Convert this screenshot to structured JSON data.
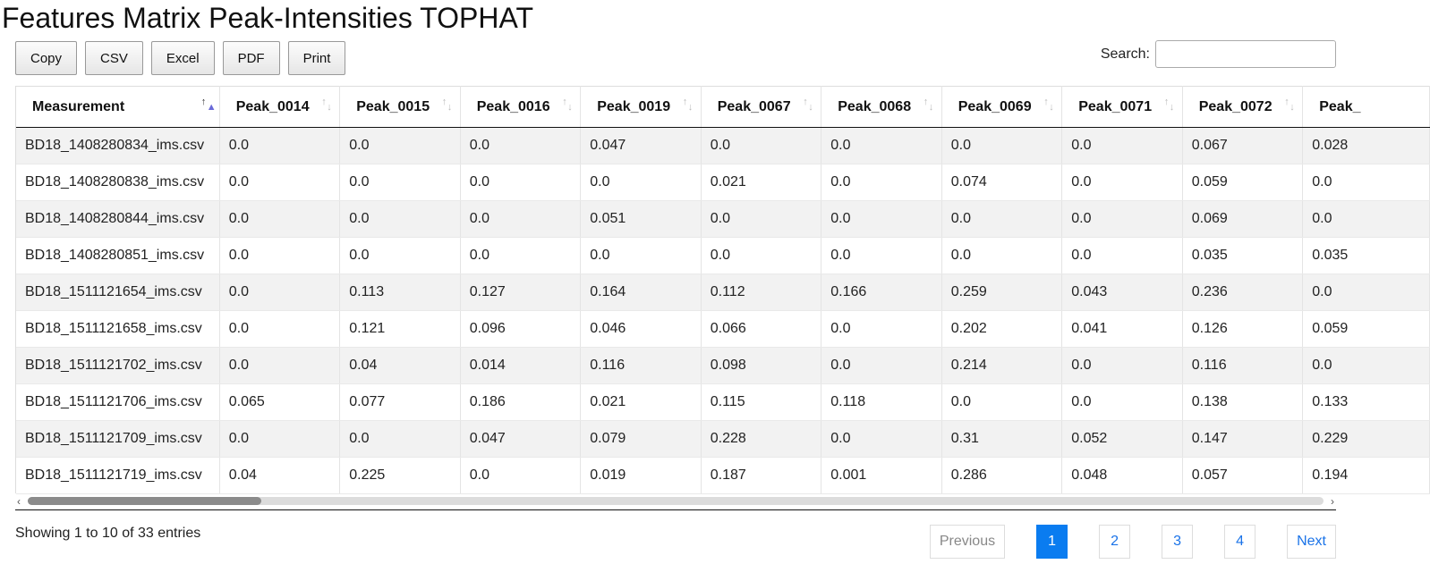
{
  "page": {
    "title": "Features Matrix Peak-Intensities TOPHAT"
  },
  "toolbar": {
    "buttons": [
      "Copy",
      "CSV",
      "Excel",
      "PDF",
      "Print"
    ]
  },
  "search": {
    "label": "Search:",
    "value": "",
    "placeholder": ""
  },
  "table": {
    "columns": [
      "Measurement",
      "Peak_0014",
      "Peak_0015",
      "Peak_0016",
      "Peak_0019",
      "Peak_0067",
      "Peak_0068",
      "Peak_0069",
      "Peak_0071",
      "Peak_0072",
      "Peak_"
    ],
    "sorted_column": "Measurement",
    "sort_direction": "ascending",
    "rows": [
      [
        "BD18_1408280834_ims.csv",
        "0.0",
        "0.0",
        "0.0",
        "0.047",
        "0.0",
        "0.0",
        "0.0",
        "0.0",
        "0.067",
        "0.028"
      ],
      [
        "BD18_1408280838_ims.csv",
        "0.0",
        "0.0",
        "0.0",
        "0.0",
        "0.021",
        "0.0",
        "0.074",
        "0.0",
        "0.059",
        "0.0"
      ],
      [
        "BD18_1408280844_ims.csv",
        "0.0",
        "0.0",
        "0.0",
        "0.051",
        "0.0",
        "0.0",
        "0.0",
        "0.0",
        "0.069",
        "0.0"
      ],
      [
        "BD18_1408280851_ims.csv",
        "0.0",
        "0.0",
        "0.0",
        "0.0",
        "0.0",
        "0.0",
        "0.0",
        "0.0",
        "0.035",
        "0.035"
      ],
      [
        "BD18_1511121654_ims.csv",
        "0.0",
        "0.113",
        "0.127",
        "0.164",
        "0.112",
        "0.166",
        "0.259",
        "0.043",
        "0.236",
        "0.0"
      ],
      [
        "BD18_1511121658_ims.csv",
        "0.0",
        "0.121",
        "0.096",
        "0.046",
        "0.066",
        "0.0",
        "0.202",
        "0.041",
        "0.126",
        "0.059"
      ],
      [
        "BD18_1511121702_ims.csv",
        "0.0",
        "0.04",
        "0.014",
        "0.116",
        "0.098",
        "0.0",
        "0.214",
        "0.0",
        "0.116",
        "0.0"
      ],
      [
        "BD18_1511121706_ims.csv",
        "0.065",
        "0.077",
        "0.186",
        "0.021",
        "0.115",
        "0.118",
        "0.0",
        "0.0",
        "0.138",
        "0.133"
      ],
      [
        "BD18_1511121709_ims.csv",
        "0.0",
        "0.0",
        "0.047",
        "0.079",
        "0.228",
        "0.0",
        "0.31",
        "0.052",
        "0.147",
        "0.229"
      ],
      [
        "BD18_1511121719_ims.csv",
        "0.04",
        "0.225",
        "0.0",
        "0.019",
        "0.187",
        "0.001",
        "0.286",
        "0.048",
        "0.057",
        "0.194"
      ]
    ]
  },
  "horizontal_scroll": {
    "position_fraction": 0.0,
    "visible_fraction": 0.18
  },
  "info": {
    "text": "Showing 1 to 10 of 33 entries"
  },
  "pagination": {
    "previous": "Previous",
    "pages": [
      "1",
      "2",
      "3",
      "4"
    ],
    "current": "1",
    "next": "Next"
  },
  "colors": {
    "accent": "#0a7cf0",
    "link": "#1a73e8",
    "stripe": "#f2f2f2"
  }
}
